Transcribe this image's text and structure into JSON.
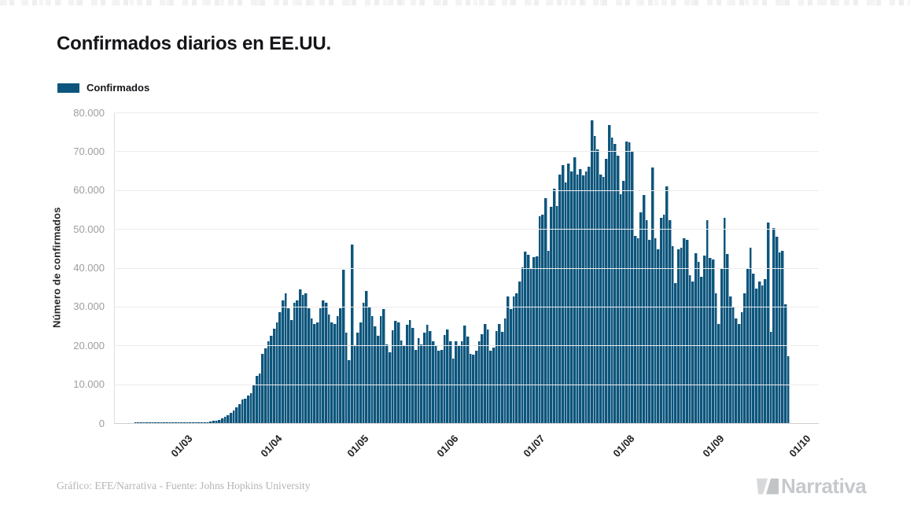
{
  "header": {
    "title": "Confirmados diarios en EE.UU."
  },
  "legend": {
    "label": "Confirmados",
    "swatch_color": "#0d557c"
  },
  "footer": {
    "credit": "Gráfico: EFE/Narrativa - Fuente: Johns Hopkins University",
    "logo_text": "Narrativa"
  },
  "colors": {
    "bar": "#0d557c",
    "grid": "#ececec",
    "tick_text": "#9e9e9e"
  },
  "chart_data": {
    "type": "bar",
    "title": "Confirmados diarios en EE.UU.",
    "series_name": "Confirmados",
    "xlabel": "",
    "ylabel": "Número de confirmados",
    "ylim": [
      0,
      80000
    ],
    "grid": "horizontal",
    "legend_position": "top-left",
    "bar_color": "#0d557c",
    "y_tick_values": [
      80000,
      70000,
      60000,
      50000,
      40000,
      30000,
      20000,
      10000,
      0
    ],
    "y_tick_labels": [
      "80.000",
      "70.000",
      "60.000",
      "50.000",
      "40.000",
      "30.000",
      "20.000",
      "10.000",
      "0"
    ],
    "x_tick_labels": [
      "01/03",
      "01/04",
      "01/05",
      "01/06",
      "01/07",
      "01/08",
      "01/09",
      "01/10"
    ],
    "x_tick_slots": [
      25,
      56,
      86,
      117,
      147,
      178,
      209,
      239
    ],
    "total_slots": 244,
    "values": [
      0,
      0,
      0,
      0,
      0,
      0,
      0,
      1,
      1,
      2,
      2,
      3,
      2,
      3,
      4,
      5,
      6,
      8,
      10,
      12,
      14,
      18,
      22,
      26,
      30,
      35,
      30,
      40,
      70,
      110,
      150,
      220,
      300,
      400,
      550,
      700,
      900,
      1200,
      1600,
      2100,
      2700,
      3300,
      4100,
      4900,
      6100,
      6300,
      7000,
      7700,
      9700,
      12100,
      12800,
      17800,
      19200,
      21000,
      22500,
      24300,
      26000,
      28500,
      31500,
      33500,
      29500,
      26500,
      31000,
      31500,
      34500,
      33000,
      33500,
      29500,
      27000,
      25500,
      26000,
      29500,
      31500,
      31000,
      28000,
      26000,
      25500,
      27500,
      29500,
      39500,
      23200,
      16200,
      46000,
      19800,
      23200,
      25900,
      31000,
      34000,
      30000,
      27500,
      25000,
      22500,
      27500,
      29400,
      20200,
      18200,
      23900,
      26300,
      25900,
      21300,
      19800,
      25300,
      26500,
      24500,
      18800,
      21800,
      20200,
      23300,
      25400,
      23700,
      21000,
      19800,
      18600,
      18800,
      22600,
      24100,
      21000,
      16600,
      21100,
      19900,
      21100,
      25200,
      22200,
      17900,
      17600,
      18700,
      21100,
      22800,
      25600,
      24200,
      18600,
      19500,
      23600,
      25500,
      23500,
      26900,
      32700,
      29300,
      32600,
      33400,
      36400,
      40100,
      44100,
      43300,
      39700,
      42800,
      42900,
      53200,
      53700,
      58000,
      44300,
      55700,
      60300,
      55900,
      64000,
      66500,
      62000,
      66800,
      64800,
      68400,
      64000,
      65400,
      63800,
      64800,
      66000,
      77900,
      74000,
      70400,
      64000,
      63400,
      68000,
      76700,
      73500,
      72000,
      68800,
      58900,
      62300,
      72500,
      72400,
      70000,
      48200,
      47600,
      54300,
      58700,
      52200,
      47200,
      65800,
      47600,
      44800,
      52900,
      53600,
      61000,
      52200,
      45500,
      36000,
      44800,
      45100,
      47600,
      47200,
      38000,
      36400,
      43700,
      41500,
      37600,
      43100,
      52200,
      42500,
      42100,
      33400,
      25500,
      39700,
      52900,
      43500,
      32600,
      30000,
      27000,
      25500,
      28500,
      33400,
      40000,
      45100,
      38500,
      34600,
      36500,
      35500,
      37000,
      51600,
      23500,
      50200,
      48000,
      44000,
      44300,
      30600,
      17200
    ]
  }
}
